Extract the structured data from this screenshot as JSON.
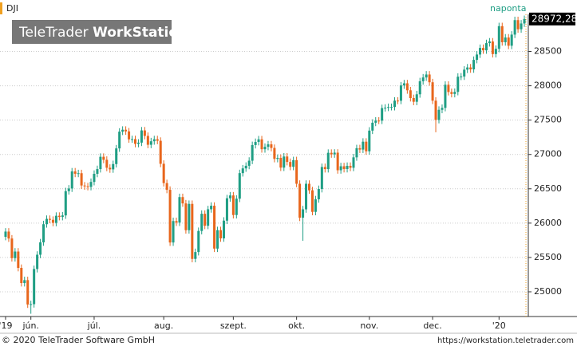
{
  "chart_data": {
    "type": "candlestick",
    "title": "DJI",
    "period": "naponta",
    "logo_regular": "TeleTrader",
    "logo_bold": "WorkStation",
    "footer_left": "© 2020 TeleTrader Software GmbH",
    "footer_right": "https://workstation.teletrader.com",
    "last_label": "28972,28",
    "up_color": "#1f9e84",
    "down_color": "#e8661c",
    "period_color": "#1f9e84",
    "grid": true,
    "ylim": [
      24640,
      29040
    ],
    "yticks": [
      25000,
      25500,
      26000,
      26500,
      27000,
      27500,
      28000,
      28500
    ],
    "categories": [
      "'19",
      null,
      null,
      null,
      null,
      null,
      null,
      null,
      "jún.",
      null,
      null,
      null,
      null,
      null,
      null,
      null,
      null,
      null,
      null,
      null,
      null,
      null,
      null,
      null,
      null,
      null,
      null,
      null,
      "júl.",
      null,
      null,
      null,
      null,
      null,
      null,
      null,
      null,
      null,
      null,
      null,
      null,
      null,
      null,
      null,
      null,
      null,
      null,
      null,
      null,
      null,
      "aug.",
      null,
      null,
      null,
      null,
      null,
      null,
      null,
      null,
      null,
      null,
      null,
      null,
      null,
      null,
      null,
      null,
      null,
      null,
      null,
      null,
      null,
      "szept.",
      null,
      null,
      null,
      null,
      null,
      null,
      null,
      null,
      null,
      null,
      null,
      null,
      null,
      null,
      null,
      null,
      null,
      null,
      null,
      "okt.",
      null,
      null,
      null,
      null,
      null,
      null,
      null,
      null,
      null,
      null,
      null,
      null,
      null,
      null,
      null,
      null,
      null,
      null,
      null,
      null,
      null,
      null,
      "nov.",
      null,
      null,
      null,
      null,
      null,
      null,
      null,
      null,
      null,
      null,
      null,
      null,
      null,
      null,
      null,
      null,
      null,
      null,
      null,
      "dec.",
      null,
      null,
      null,
      null,
      null,
      null,
      null,
      null,
      null,
      null,
      null,
      null,
      null,
      null,
      null,
      null,
      null,
      null,
      null,
      null,
      "'20",
      null,
      null,
      null,
      null,
      null,
      null,
      null,
      null
    ],
    "open": [
      25800,
      25877,
      25776,
      25490,
      25586,
      25348,
      25127,
      25170,
      24815,
      24820,
      25332,
      25540,
      25720,
      25984,
      26062,
      26048,
      26004,
      26107,
      26090,
      26112,
      26465,
      26504,
      26753,
      26719,
      26727,
      26548,
      26536,
      26527,
      26600,
      26718,
      26787,
      26966,
      26922,
      26806,
      26783,
      26860,
      27088,
      27332,
      27360,
      27336,
      27220,
      27223,
      27154,
      27172,
      27350,
      27270,
      27141,
      27192,
      27222,
      27199,
      26864,
      26583,
      26485,
      25718,
      26030,
      26008,
      26379,
      26287,
      25897,
      26280,
      25479,
      25579,
      25886,
      26136,
      25962,
      26202,
      26253,
      25629,
      25898,
      25778,
      26036,
      26362,
      26403,
      26118,
      26356,
      26728,
      26797,
      26835,
      26909,
      27137,
      27182,
      27220,
      27076,
      27111,
      27147,
      27095,
      26935,
      26950,
      26808,
      26970,
      26891,
      26820,
      26917,
      26573,
      26079,
      26201,
      26573,
      26478,
      26164,
      26347,
      26497,
      26817,
      26787,
      27024,
      27002,
      27026,
      26770,
      26828,
      26788,
      26834,
      26806,
      26958,
      27091,
      27071,
      27186,
      27046,
      27347,
      27462,
      27493,
      27492,
      27675,
      27681,
      27691,
      27691,
      27784,
      27782,
      28005,
      28036,
      27934,
      27821,
      27767,
      27876,
      28066,
      28121,
      28164,
      28051,
      27783,
      27503,
      27650,
      27678,
      28015,
      27909,
      27881,
      27911,
      28132,
      28135,
      28235,
      28267,
      28239,
      28377,
      28455,
      28551,
      28516,
      28621,
      28645,
      28462,
      28538,
      28868,
      28634,
      28703,
      28583,
      28745,
      28956,
      28823,
      28907
    ],
    "high": [
      25927,
      25927,
      25826,
      25636,
      25636,
      25398,
      25220,
      25220,
      24870,
      25382,
      25590,
      25770,
      26034,
      26112,
      26112,
      26098,
      26157,
      26157,
      26162,
      26515,
      26554,
      26803,
      26803,
      26777,
      26777,
      26598,
      26586,
      26650,
      26768,
      26837,
      27016,
      27016,
      26972,
      26856,
      26910,
      27138,
      27382,
      27410,
      27410,
      27386,
      27273,
      27273,
      27222,
      27400,
      27400,
      27320,
      27242,
      27272,
      27272,
      27249,
      26914,
      26633,
      26535,
      26080,
      26080,
      26429,
      26429,
      26337,
      26330,
      26330,
      25629,
      25936,
      26186,
      26186,
      26252,
      26303,
      26303,
      25948,
      25948,
      26086,
      26412,
      26453,
      26453,
      26406,
      26778,
      26847,
      26885,
      26959,
      27187,
      27232,
      27270,
      27270,
      27161,
      27197,
      27197,
      27145,
      27000,
      27000,
      27020,
      27020,
      26941,
      26967,
      26967,
      26623,
      26251,
      26623,
      26623,
      26528,
      26397,
      26547,
      26867,
      26867,
      27074,
      27074,
      27076,
      27076,
      26878,
      26878,
      26884,
      26884,
      27008,
      27141,
      27141,
      27236,
      27236,
      27397,
      27512,
      27543,
      27543,
      27725,
      27731,
      27741,
      27741,
      27834,
      27834,
      28055,
      28086,
      28086,
      27984,
      27871,
      27926,
      28116,
      28171,
      28214,
      28214,
      28101,
      27833,
      27700,
      27728,
      28065,
      28065,
      27959,
      27961,
      28182,
      28185,
      28285,
      28317,
      28317,
      28427,
      28505,
      28601,
      28601,
      28671,
      28695,
      28695,
      28588,
      28918,
      28918,
      28753,
      28753,
      28795,
      29006,
      29006,
      28957,
      29022
    ],
    "low": [
      25750,
      25726,
      25440,
      25440,
      25298,
      25077,
      25077,
      24765,
      24680,
      24770,
      25282,
      25490,
      25670,
      25934,
      25998,
      25954,
      25954,
      26040,
      26040,
      26062,
      26415,
      26454,
      26669,
      26669,
      26498,
      26486,
      26477,
      26477,
      26550,
      26668,
      26737,
      26872,
      26756,
      26733,
      26733,
      26810,
      27038,
      27282,
      27286,
      27170,
      27170,
      27104,
      27104,
      27122,
      27220,
      27091,
      27091,
      27142,
      27149,
      26814,
      26533,
      26435,
      25668,
      25668,
      25958,
      25958,
      26237,
      25847,
      25847,
      25429,
      25429,
      25529,
      25836,
      25912,
      25912,
      26152,
      25579,
      25579,
      25728,
      25728,
      25986,
      26312,
      26068,
      26068,
      26306,
      26678,
      26747,
      26785,
      26859,
      27087,
      27132,
      27026,
      27026,
      27061,
      27045,
      26885,
      26885,
      26758,
      26758,
      26841,
      26770,
      26770,
      26523,
      26029,
      25743,
      26151,
      26428,
      26114,
      26114,
      26297,
      26447,
      26737,
      26737,
      26952,
      26952,
      26720,
      26720,
      26738,
      26738,
      26756,
      26756,
      26908,
      27021,
      27021,
      26996,
      26996,
      27297,
      27412,
      27442,
      27442,
      27625,
      27631,
      27641,
      27641,
      27732,
      27732,
      27955,
      27884,
      27771,
      27717,
      27717,
      27826,
      28016,
      28071,
      28001,
      27733,
      27323,
      27453,
      27600,
      27628,
      27859,
      27831,
      27831,
      27861,
      28082,
      28085,
      28185,
      28189,
      28189,
      28327,
      28405,
      28466,
      28466,
      28571,
      28412,
      28412,
      28488,
      28584,
      28584,
      28533,
      28533,
      28695,
      28773,
      28773,
      28857
    ],
    "close": [
      25877,
      25776,
      25490,
      25586,
      25348,
      25127,
      25170,
      24815,
      24820,
      25332,
      25540,
      25720,
      25984,
      26062,
      26048,
      26004,
      26107,
      26090,
      26112,
      26465,
      26504,
      26753,
      26719,
      26727,
      26548,
      26536,
      26527,
      26600,
      26718,
      26787,
      26966,
      26922,
      26806,
      26783,
      26860,
      27088,
      27332,
      27360,
      27336,
      27220,
      27223,
      27154,
      27172,
      27350,
      27270,
      27141,
      27192,
      27222,
      27199,
      26864,
      26583,
      26485,
      25718,
      26030,
      26008,
      26379,
      26287,
      25897,
      26280,
      25479,
      25579,
      25886,
      26136,
      25962,
      26202,
      26253,
      25629,
      25898,
      25778,
      26036,
      26362,
      26403,
      26118,
      26356,
      26728,
      26797,
      26835,
      26909,
      27137,
      27182,
      27220,
      27076,
      27111,
      27147,
      27095,
      26935,
      26950,
      26808,
      26970,
      26891,
      26820,
      26917,
      26573,
      26079,
      26201,
      26573,
      26478,
      26164,
      26347,
      26497,
      26817,
      26787,
      27024,
      27002,
      27026,
      26770,
      26828,
      26788,
      26834,
      26806,
      26958,
      27091,
      27071,
      27186,
      27046,
      27347,
      27462,
      27493,
      27492,
      27675,
      27681,
      27691,
      27691,
      27784,
      27782,
      28005,
      28036,
      27934,
      27821,
      27767,
      27876,
      28066,
      28121,
      28164,
      28051,
      27783,
      27503,
      27650,
      27678,
      28015,
      27909,
      27881,
      27911,
      28132,
      28135,
      28235,
      28267,
      28239,
      28377,
      28455,
      28551,
      28516,
      28621,
      28645,
      28462,
      28538,
      28868,
      28634,
      28703,
      28583,
      28745,
      28956,
      28823,
      28907,
      28972.28
    ]
  }
}
